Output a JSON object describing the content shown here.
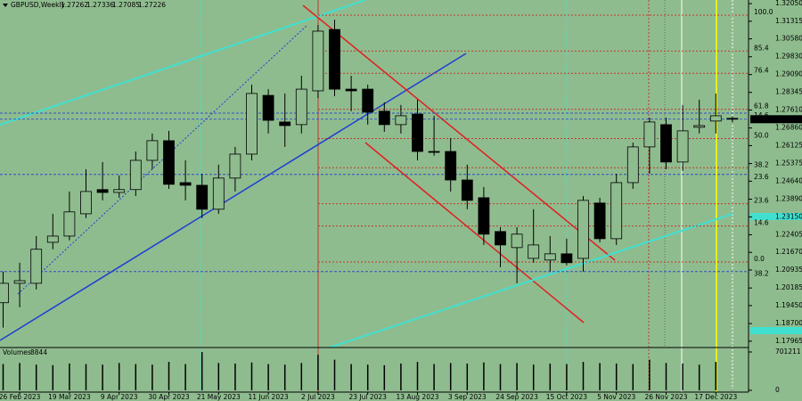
{
  "chart_data": {
    "type": "candlestick",
    "title": "GBPUSD,Weekly",
    "x": [
      null,
      "26 Feb 2023",
      null,
      null,
      "19 Mar 2023",
      null,
      null,
      "9 Apr 2023",
      null,
      null,
      "30 Apr 2023",
      null,
      null,
      "21 May 2023",
      null,
      null,
      "11 Jun 2023",
      null,
      null,
      "2 Jul 2023",
      null,
      null,
      "23 Jul 2023",
      null,
      null,
      "13 Aug 2023",
      null,
      null,
      "3 Sep 2023",
      null,
      null,
      "24 Sep 2023",
      null,
      null,
      "15 Oct 2023",
      null,
      null,
      "5 Nov 2023",
      null,
      null,
      "26 Nov 2023",
      null,
      null,
      "17 Dec 2023",
      null
    ],
    "open": [
      1.1957,
      1.2038,
      1.2038,
      1.2209,
      1.2235,
      1.2328,
      1.2429,
      1.2417,
      1.2429,
      1.2551,
      1.2633,
      1.2458,
      1.2447,
      1.2347,
      1.2477,
      1.2577,
      1.2822,
      1.2711,
      1.27,
      1.2841,
      1.3097,
      1.2848,
      1.2848,
      1.2756,
      1.27,
      1.2744,
      1.2588,
      1.2588,
      1.2469,
      1.2395,
      1.2254,
      1.2187,
      1.2142,
      1.2135,
      1.2161,
      1.2142,
      1.2373,
      1.2224,
      1.2458,
      1.2607,
      1.27,
      1.2544,
      1.2689,
      1.2715,
      1.27262
    ],
    "high": [
      1.2087,
      1.2124,
      1.2235,
      1.2328,
      1.2421,
      1.2514,
      1.2544,
      1.2488,
      1.2588,
      1.2663,
      1.2674,
      1.2551,
      1.2495,
      1.2533,
      1.2607,
      1.2867,
      1.2848,
      1.283,
      1.2904,
      1.3116,
      1.3138,
      1.2904,
      1.2867,
      1.2793,
      1.2782,
      1.2804,
      1.2737,
      1.2644,
      1.2533,
      1.244,
      1.2272,
      1.2272,
      1.2347,
      1.2235,
      1.2224,
      1.2402,
      1.2395,
      1.2495,
      1.2625,
      1.2729,
      1.2729,
      1.2782,
      1.2804,
      1.283,
      1.27336
    ],
    "low": [
      1.1853,
      1.1938,
      1.2012,
      1.218,
      1.2217,
      1.231,
      1.2384,
      1.2395,
      1.2402,
      1.2514,
      1.2432,
      1.2384,
      1.231,
      1.2328,
      1.2421,
      1.2551,
      1.2663,
      1.2607,
      1.2663,
      1.2811,
      1.2819,
      1.2756,
      1.27,
      1.267,
      1.2663,
      1.2551,
      1.257,
      1.2421,
      1.2347,
      1.2198,
      1.2105,
      1.2038,
      1.2124,
      1.2087,
      1.2113,
      1.2087,
      1.2209,
      1.2198,
      1.2432,
      1.2495,
      1.2514,
      1.2507,
      1.2663,
      1.2663,
      1.27085
    ],
    "close": [
      1.2038,
      1.2049,
      1.218,
      1.2235,
      1.2336,
      1.2421,
      1.2417,
      1.2429,
      1.2551,
      1.2633,
      1.2451,
      1.2447,
      1.2347,
      1.2477,
      1.2577,
      1.283,
      1.2718,
      1.2696,
      1.2848,
      1.309,
      1.2848,
      1.2841,
      1.2752,
      1.27,
      1.2737,
      1.2588,
      1.2585,
      1.2469,
      1.2384,
      1.2243,
      1.2198,
      1.2243,
      1.2198,
      1.2161,
      1.2124,
      1.2384,
      1.2224,
      1.2458,
      1.2607,
      1.2711,
      1.2544,
      1.2674,
      1.2696,
      1.2737,
      1.27226
    ],
    "volume_label": "Volumes",
    "volumes": [
      480000,
      500000,
      470000,
      460000,
      490000,
      480000,
      470000,
      500000,
      480000,
      470000,
      520000,
      480000,
      700000,
      500000,
      490000,
      510000,
      480000,
      470000,
      500000,
      650000,
      560000,
      480000,
      470000,
      460000,
      490000,
      520000,
      480000,
      500000,
      490000,
      510000,
      480000,
      500000,
      470000,
      490000,
      480000,
      520000,
      500000,
      490000,
      480000,
      560000,
      500000,
      490000,
      470000,
      520000,
      8844
    ],
    "ylim": [
      1.177,
      1.322
    ],
    "yticks": [
      {
        "value": 1.3205,
        "label": "1.32050"
      },
      1.31315,
      {
        "value": 1.3058,
        "label": "1.30580"
      },
      {
        "value": 1.2983,
        "label": "1.29830"
      },
      {
        "value": 1.2909,
        "label": "1.29090"
      },
      1.28345,
      {
        "value": 1.2761,
        "label": "1.27610"
      },
      {
        "value": 1.2686,
        "label": "1.26860"
      },
      1.26125,
      1.25375,
      {
        "value": 1.2464,
        "label": "1.24640"
      },
      {
        "value": 1.2389,
        "label": "1.23890"
      },
      {
        "value": 1.2315,
        "label": "1.23150"
      },
      1.22405,
      {
        "value": 1.2167,
        "label": "1.21670"
      },
      1.20935,
      1.20185,
      {
        "value": 1.1945,
        "label": "1.19450"
      },
      {
        "value": 1.187,
        "label": "1.18700"
      },
      1.17965
    ],
    "volume_ylim": [
      0,
      701211
    ],
    "volume_yticks": [
      0,
      701211
    ],
    "fib_levels": [
      {
        "label": "100.0",
        "value": 1.3157
      },
      {
        "label": "85.4",
        "value": 1.3007
      },
      {
        "label": "76.4",
        "value": 1.2914
      },
      {
        "label": "61.8",
        "value": 1.2764
      },
      {
        "label": "50.0",
        "value": 1.2642
      },
      {
        "label": "38.2",
        "value": 1.252
      },
      {
        "label": "23.6",
        "value": 1.237
      },
      {
        "label": "14.6",
        "value": 1.2277
      },
      {
        "label": "0.0",
        "value": 1.2127
      }
    ],
    "blue_fib_levels": [
      {
        "label": "14.6",
        "value": 1.2748
      },
      {
        "label": "23.6",
        "value": 1.2492
      },
      {
        "label": "38.2",
        "value": 1.2087
      }
    ],
    "fib_color": "#c0392b",
    "blue_fib_color": "#2f4fbf",
    "bull_color": "#8fbc8f",
    "bear_color": "#000000",
    "background": "#8fbc8f"
  }
}
